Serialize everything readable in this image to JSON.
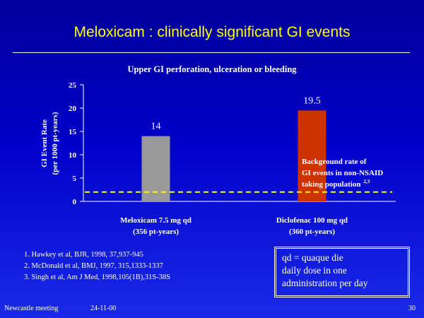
{
  "slide": {
    "title": "Meloxicam :  clinically significant GI events",
    "page_number": "30"
  },
  "chart_data": {
    "type": "bar",
    "title": "Upper GI perforation, ulceration or bleeding",
    "ylabel_line1": "GI Event Rate",
    "ylabel_line2": "(per 1000 pt-years)",
    "ylim": [
      0,
      25
    ],
    "yticks": [
      0,
      5,
      10,
      15,
      20,
      25
    ],
    "categories": [
      {
        "line1": "Meloxicam 7.5 mg qd",
        "line2": "(356 pt-years)"
      },
      {
        "line1": "Diclofenac 100 mg qd",
        "line2": "(360 pt-years)"
      }
    ],
    "values": [
      14,
      19.5
    ],
    "value_labels": [
      "14",
      "19.5"
    ],
    "bar_colors": [
      "#999999",
      "#cc3300"
    ],
    "background_rate": 2,
    "background_label": {
      "line1": "Background rate of",
      "line2": "GI events in non-NSAID",
      "line3": "taking population",
      "superscript": "2,3"
    }
  },
  "references": [
    "1. Hawkey et al, BJR, 1998, 37,937-945",
    "2. McDonald et al, BMJ, 1997, 315,1333-1337",
    "3. Singh et al, Am J Med, 1998,105(1B),31S-38S"
  ],
  "note": {
    "line1": "qd = quaque die",
    "line2": "daily dose in one",
    "line3": "administration per day"
  },
  "footer": {
    "left": "Newcastle meeting",
    "date": "24-11-00"
  },
  "colors": {
    "title": "#ffff00",
    "text": "#ffffff",
    "dashed_line": "#ffff00"
  }
}
